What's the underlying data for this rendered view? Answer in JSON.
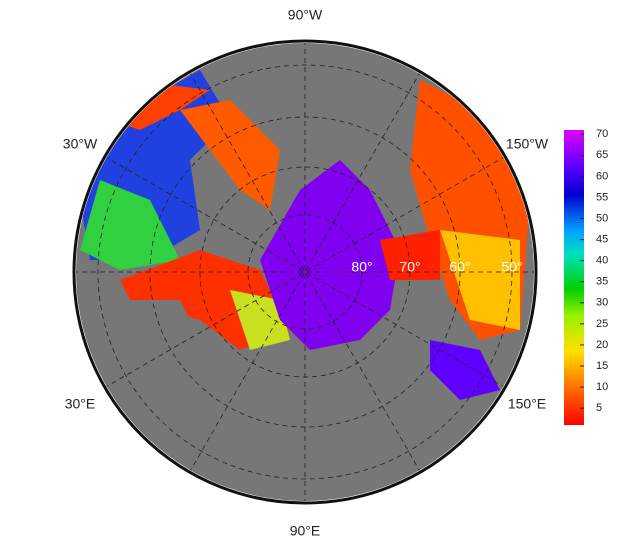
{
  "map": {
    "longitude_labels": [
      "90°W",
      "30°W",
      "150°W",
      "30°E",
      "150°E",
      "90°E"
    ],
    "latitude_labels": [
      "80°",
      "70°",
      "60°",
      "50°"
    ],
    "colorbar": {
      "lim": [
        1,
        71
      ],
      "ticks": [
        5,
        10,
        15,
        20,
        25,
        30,
        35,
        40,
        45,
        50,
        55,
        60,
        65,
        70
      ]
    }
  }
}
